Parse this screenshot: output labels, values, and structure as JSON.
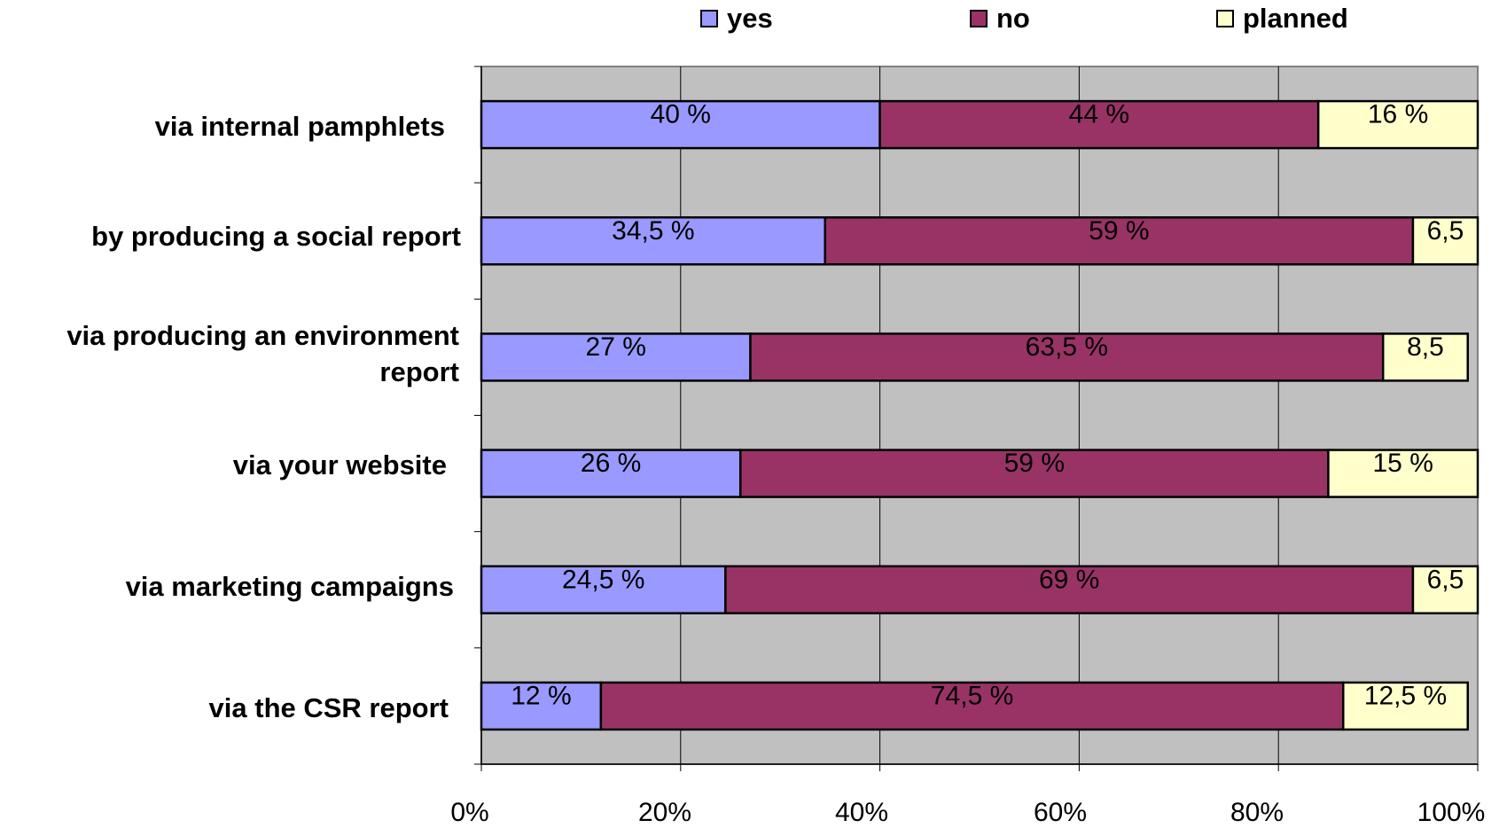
{
  "chart_data": {
    "type": "bar",
    "orientation": "horizontal",
    "stacked": true,
    "normalized_percent": true,
    "categories": [
      "via internal pamphlets",
      "by producing a social report",
      "via producing an environment report",
      "via your website",
      "via marketing campaigns",
      "via the CSR report"
    ],
    "series": [
      {
        "name": "yes",
        "color": "#9999ff",
        "values": [
          40,
          34.5,
          27,
          26,
          24.5,
          12
        ],
        "labels": [
          "40 %",
          "34,5 %",
          "27 %",
          "26 %",
          "24,5 %",
          "12 %"
        ]
      },
      {
        "name": "no",
        "color": "#993366",
        "values": [
          44,
          59,
          63.5,
          59,
          69,
          74.5
        ],
        "labels": [
          "44 %",
          "59 %",
          "63,5 %",
          "59 %",
          "69 %",
          "74,5 %"
        ]
      },
      {
        "name": "planned",
        "color": "#ffffcc",
        "values": [
          16,
          6.5,
          8.5,
          15,
          6.5,
          12.5
        ],
        "labels": [
          "16 %",
          "6,5",
          "8,5",
          "15 %",
          "6,5",
          "12,5 %"
        ]
      }
    ],
    "xlim": [
      0,
      100
    ],
    "x_ticks": [
      "0%",
      "20%",
      "40%",
      "60%",
      "80%",
      "100%"
    ],
    "grid": true,
    "legend_position": "top",
    "plot_background": "#c0c0c0"
  }
}
